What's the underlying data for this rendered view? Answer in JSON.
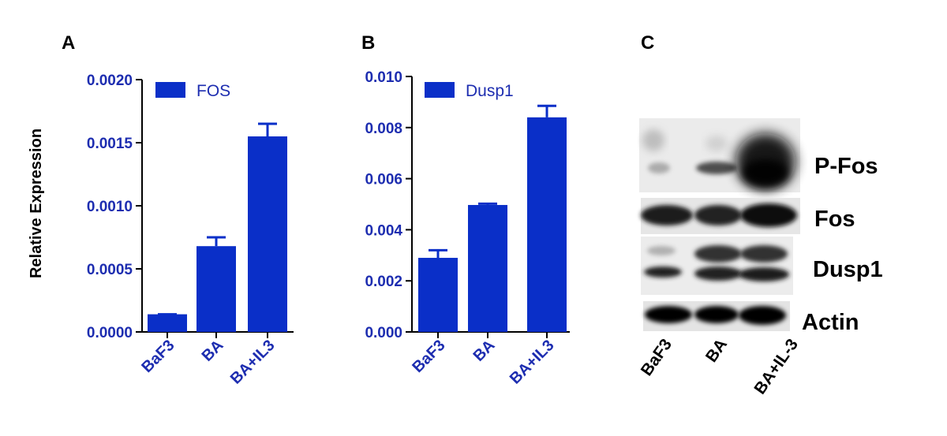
{
  "panels": {
    "a": "A",
    "b": "B",
    "c": "C"
  },
  "colors": {
    "accent": "#0a2fc8",
    "text": "#1d2db0",
    "black": "#000000"
  },
  "chart_data": [
    {
      "type": "bar",
      "panel": "A",
      "ylabel": "Relative Expression",
      "categories": [
        "BaF3",
        "BA",
        "BA+IL3"
      ],
      "series": [
        {
          "name": "FOS",
          "values": [
            0.00014,
            0.00068,
            0.00155
          ],
          "errors": [
            0.0,
            7e-05,
            0.0001
          ]
        }
      ],
      "ylim": [
        0,
        0.002
      ],
      "yticks": [
        "0.0000",
        "0.0005",
        "0.0010",
        "0.0015",
        "0.0020"
      ],
      "legend": "top-left"
    },
    {
      "type": "bar",
      "panel": "B",
      "categories": [
        "BaF3",
        "BA",
        "BA+IL3"
      ],
      "series": [
        {
          "name": "Dusp1",
          "values": [
            0.0029,
            0.00497,
            0.0084
          ],
          "errors": [
            0.0003,
            5e-05,
            0.00045
          ]
        }
      ],
      "ylim": [
        0,
        0.01
      ],
      "yticks": [
        "0.000",
        "0.002",
        "0.004",
        "0.006",
        "0.008",
        "0.010"
      ],
      "legend": "top-left"
    }
  ],
  "western_blot": {
    "bands": [
      "P-Fos",
      "Fos",
      "Dusp1",
      "Actin"
    ],
    "lanes": [
      "BaF3",
      "BA",
      "BA+IL-3"
    ]
  }
}
